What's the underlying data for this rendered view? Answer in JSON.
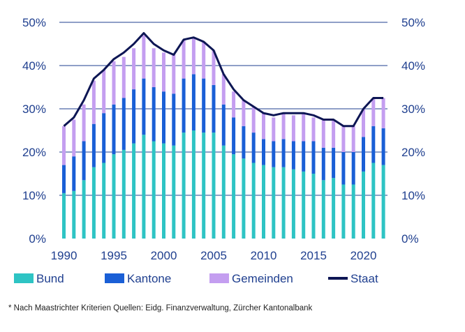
{
  "chart_data": {
    "type": "bar",
    "stacked": true,
    "title": "",
    "xlabel": "",
    "ylabel": "",
    "ylim": [
      0,
      50
    ],
    "y_ticks": [
      "0%",
      "10%",
      "20%",
      "30%",
      "40%",
      "50%"
    ],
    "y_ticks_right": [
      "0%",
      "10%",
      "20%",
      "30%",
      "40%",
      "50%"
    ],
    "x_ticks": [
      "1990",
      "1995",
      "2000",
      "2005",
      "2010",
      "2015",
      "2020"
    ],
    "x": [
      1990,
      1991,
      1992,
      1993,
      1994,
      1995,
      1996,
      1997,
      1998,
      1999,
      2000,
      2001,
      2002,
      2003,
      2004,
      2005,
      2006,
      2007,
      2008,
      2009,
      2010,
      2011,
      2012,
      2013,
      2014,
      2015,
      2016,
      2017,
      2018,
      2019,
      2020,
      2021,
      2022
    ],
    "gridlines": "horizontal",
    "legend_position": "bottom",
    "series": [
      {
        "name": "Bund",
        "kind": "bar",
        "color": "#2ec4c4",
        "values": [
          10.5,
          11,
          13.5,
          16.5,
          17.5,
          19.5,
          20.5,
          22,
          24,
          22.5,
          22,
          21.5,
          24.5,
          25,
          24.5,
          24.5,
          21.5,
          19.5,
          18.5,
          17.5,
          17,
          16.5,
          16.5,
          16,
          15.5,
          15,
          13.5,
          14,
          12.5,
          12.5,
          15.5,
          17.5,
          17
        ]
      },
      {
        "name": "Kantone",
        "kind": "bar",
        "color": "#1a5fd6",
        "values": [
          6.5,
          8,
          9,
          10,
          11.5,
          11.5,
          12,
          12.5,
          13,
          12.5,
          12,
          12,
          12.5,
          13,
          12.5,
          11,
          9.5,
          8.5,
          7.5,
          7,
          6,
          6,
          6.5,
          6.5,
          7,
          7.5,
          7.5,
          7,
          7.5,
          7.5,
          8,
          8.5,
          8.5
        ]
      },
      {
        "name": "Gemeinden",
        "kind": "bar",
        "color": "#c49ef0",
        "values": [
          9,
          8.5,
          8.5,
          10,
          10,
          10,
          9.5,
          9.5,
          10,
          9,
          9,
          9,
          9,
          8.5,
          8.5,
          8,
          7,
          6,
          6,
          6,
          6,
          5.5,
          6,
          6,
          6.5,
          5.5,
          6.5,
          6.5,
          6,
          6,
          6.5,
          6.5,
          7
        ]
      },
      {
        "name": "Staat",
        "kind": "line",
        "color": "#0d1654",
        "values": [
          26,
          28,
          32,
          37,
          39,
          41.5,
          43,
          45,
          47.5,
          45,
          43.5,
          42.5,
          46,
          46.5,
          45.5,
          43.5,
          38,
          34.5,
          32,
          30.5,
          29,
          28.5,
          29,
          29,
          29,
          28.5,
          27.5,
          27.5,
          26,
          26,
          30,
          32.5,
          32.5
        ]
      }
    ]
  },
  "footnote": "* Nach Maastrichter Kriterien   Quellen: Eidg. Finanzverwaltung, Zürcher Kantonalbank"
}
